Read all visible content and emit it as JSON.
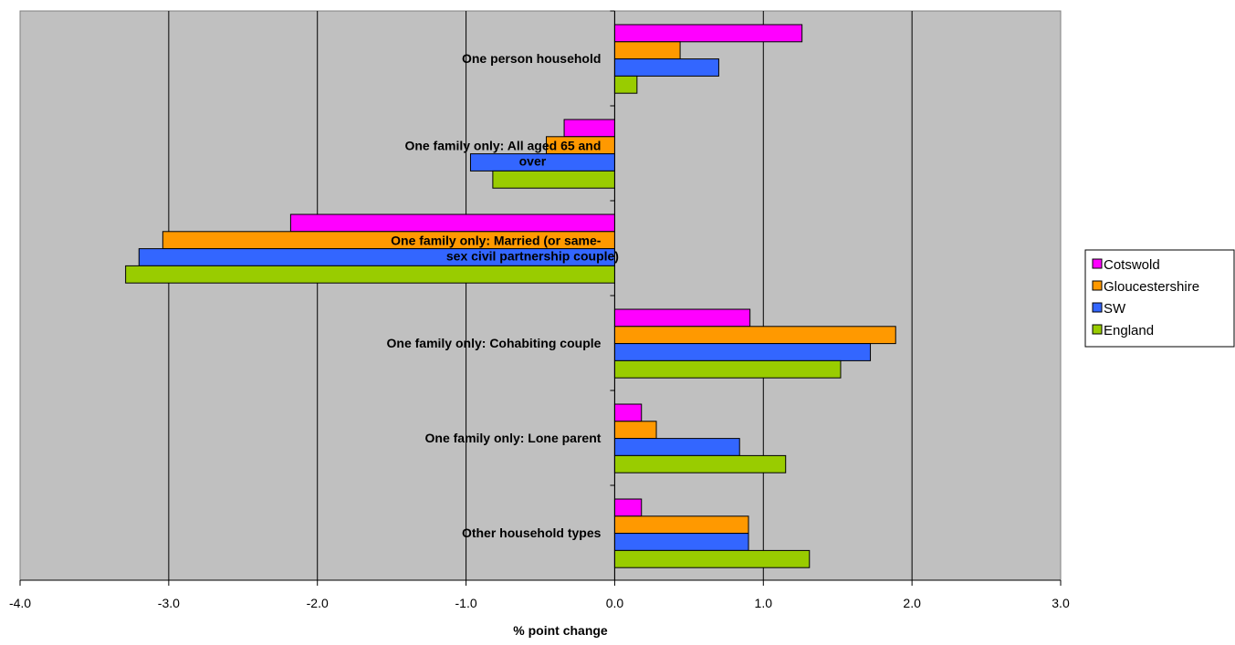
{
  "chart_data": {
    "type": "bar",
    "orientation": "horizontal",
    "categories": [
      "One person household",
      "One family only: All aged 65 and over",
      "One family only: Married (or same-sex civil partnership couple)",
      "One family only: Cohabiting couple",
      "One family only: Lone parent",
      "Other household types"
    ],
    "category_label_lines": [
      [
        "One person household"
      ],
      [
        "One family only: All aged 65 and",
        "over"
      ],
      [
        "One family only: Married (or same-",
        "sex civil partnership couple)"
      ],
      [
        "One family only: Cohabiting couple"
      ],
      [
        "One family only: Lone parent"
      ],
      [
        "Other household types"
      ]
    ],
    "series": [
      {
        "name": "Cotswold",
        "color": "#ff00ff",
        "values": [
          1.26,
          -0.34,
          -2.18,
          0.91,
          0.18,
          0.18
        ]
      },
      {
        "name": "Gloucestershire",
        "color": "#ff9900",
        "values": [
          0.44,
          -0.46,
          -3.04,
          1.89,
          0.28,
          0.9
        ]
      },
      {
        "name": "SW",
        "color": "#3366ff",
        "values": [
          0.7,
          -0.97,
          -3.2,
          1.72,
          0.84,
          0.9
        ]
      },
      {
        "name": "England",
        "color": "#99cc00",
        "values": [
          0.15,
          -0.82,
          -3.29,
          1.52,
          1.15,
          1.31
        ]
      }
    ],
    "xlabel": "% point change",
    "ylabel": "",
    "title": "",
    "xlim": [
      -4.0,
      3.0
    ],
    "xticks": [
      -4.0,
      -3.0,
      -2.0,
      -1.0,
      0.0,
      1.0,
      2.0,
      3.0
    ],
    "xtick_labels": [
      "-4.0",
      "-3.0",
      "-2.0",
      "-1.0",
      "0.0",
      "1.0",
      "2.0",
      "3.0"
    ],
    "grid": "vertical",
    "plot_background": "#c0c0c0",
    "legend_position": "right"
  }
}
